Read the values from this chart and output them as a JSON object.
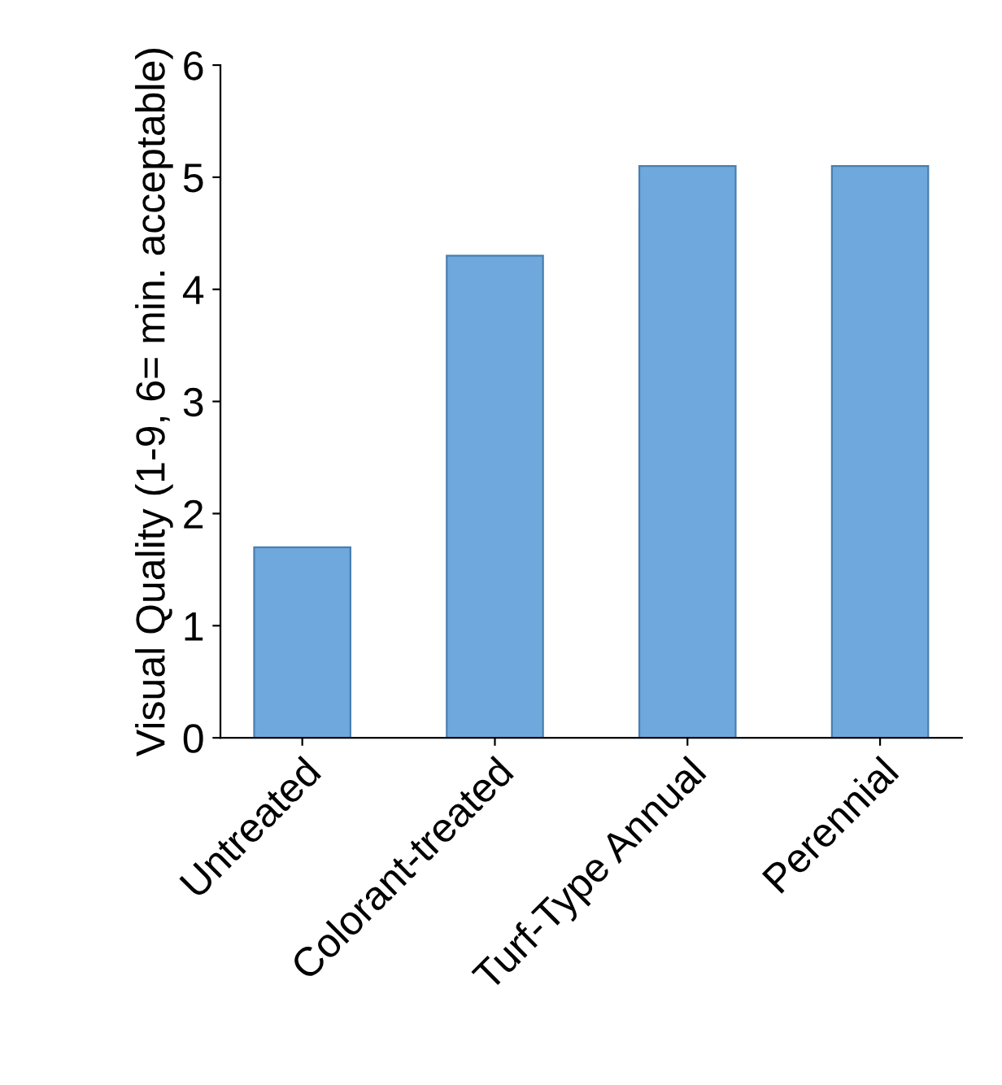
{
  "chart_data": {
    "type": "bar",
    "ylabel": "Visual Quality (1-9, 6= min. acceptable)",
    "categories": [
      "Untreated",
      "Colorant-treated",
      "Turf-Type Annual",
      "Perennial"
    ],
    "values": [
      1.7,
      4.3,
      5.1,
      5.1
    ],
    "color": "#6fa8dc",
    "ylim": [
      0,
      6
    ],
    "yticks": [
      0,
      1,
      2,
      3,
      4,
      5,
      6
    ],
    "grid": false
  }
}
